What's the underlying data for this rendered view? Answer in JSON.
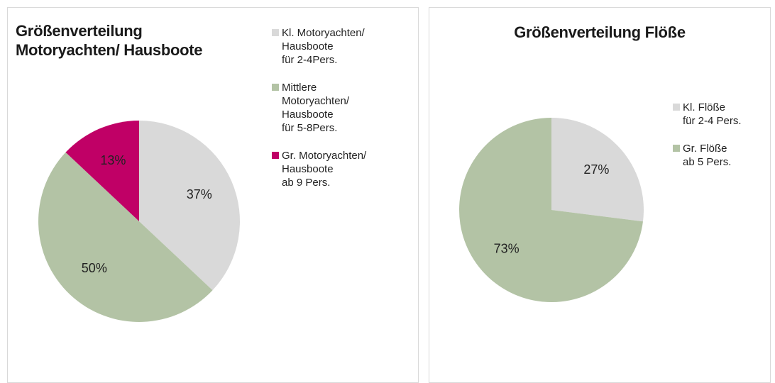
{
  "chart_data": [
    {
      "type": "pie",
      "title": "Größenverteilung\nMotoryachten/ Hausboote",
      "categories": [
        "Kl. Motoryachten/\nHausboote\nfür 2-4Pers.",
        "Mittlere\nMotoryachten/\nHausboote\nfür 5-8Pers.",
        "Gr. Motoryachten/\nHausboote\nab 9 Pers."
      ],
      "values": [
        37,
        50,
        13
      ],
      "value_labels": [
        "37%",
        "50%",
        "13%"
      ],
      "colors": [
        "#d9d9d9",
        "#b3c3a5",
        "#c00066"
      ],
      "legend": "right"
    },
    {
      "type": "pie",
      "title": "Größenverteilung Flöße",
      "categories": [
        "Kl. Flöße\nfür 2-4 Pers.",
        "Gr. Flöße\nab 5 Pers."
      ],
      "values": [
        27,
        73
      ],
      "value_labels": [
        "27%",
        "73%"
      ],
      "colors": [
        "#d9d9d9",
        "#b3c3a5"
      ],
      "legend": "right"
    }
  ]
}
